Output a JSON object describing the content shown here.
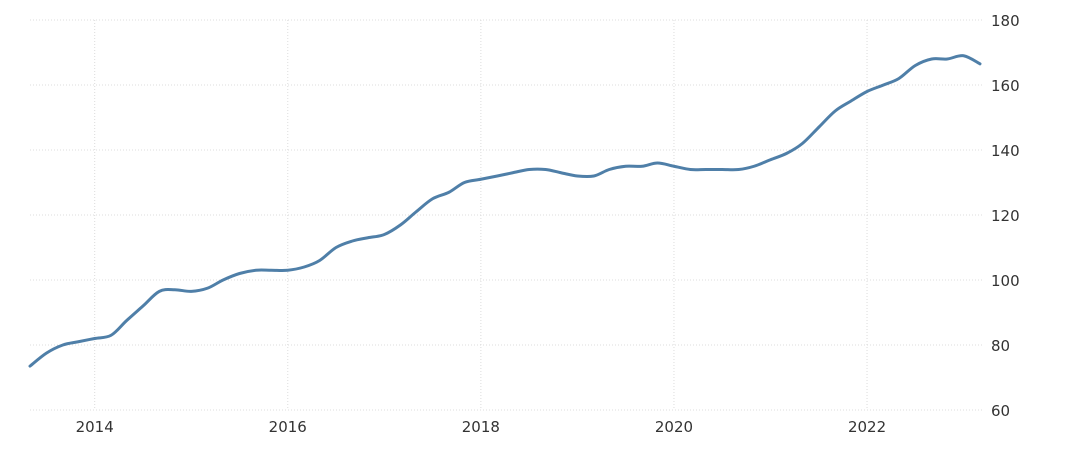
{
  "chart_data": {
    "type": "line",
    "title": "",
    "xlabel": "",
    "ylabel": "",
    "x_ticks": [
      "2014",
      "2016",
      "2018",
      "2020",
      "2022"
    ],
    "y_ticks": [
      60,
      80,
      100,
      120,
      140,
      160,
      180
    ],
    "xlim": [
      2013.33,
      2023.17
    ],
    "ylim": [
      60,
      180
    ],
    "grid": true,
    "y_axis_side": "right",
    "colors": {
      "line": "#4f7fa8",
      "grid": "#dcdcdc",
      "text": "#333333"
    },
    "series": [
      {
        "x": [
          2013.33,
          2013.5,
          2013.67,
          2013.83,
          2014.0,
          2014.17,
          2014.33,
          2014.5,
          2014.67,
          2014.83,
          2015.0,
          2015.17,
          2015.33,
          2015.5,
          2015.67,
          2015.83,
          2016.0,
          2016.17,
          2016.33,
          2016.5,
          2016.67,
          2016.83,
          2017.0,
          2017.17,
          2017.33,
          2017.5,
          2017.67,
          2017.83,
          2018.0,
          2018.17,
          2018.33,
          2018.5,
          2018.67,
          2018.83,
          2019.0,
          2019.17,
          2019.33,
          2019.5,
          2019.67,
          2019.83,
          2020.0,
          2020.17,
          2020.33,
          2020.5,
          2020.67,
          2020.83,
          2021.0,
          2021.17,
          2021.33,
          2021.5,
          2021.67,
          2021.83,
          2022.0,
          2022.17,
          2022.33,
          2022.5,
          2022.67,
          2022.83,
          2023.0,
          2023.17
        ],
        "values": [
          73.5,
          77.5,
          80,
          81,
          82,
          83,
          87.5,
          92,
          96.5,
          97,
          96.5,
          97.5,
          100,
          102,
          103,
          103,
          103,
          104,
          106,
          110,
          112,
          113,
          114,
          117,
          121,
          125,
          127,
          130,
          131,
          132,
          133,
          134,
          134,
          133,
          132,
          132,
          134,
          135,
          135,
          136,
          135,
          134,
          134,
          134,
          134,
          135,
          137,
          139,
          142,
          147,
          152,
          155,
          158,
          160,
          162,
          166,
          168,
          168,
          169,
          166.5
        ]
      }
    ]
  }
}
